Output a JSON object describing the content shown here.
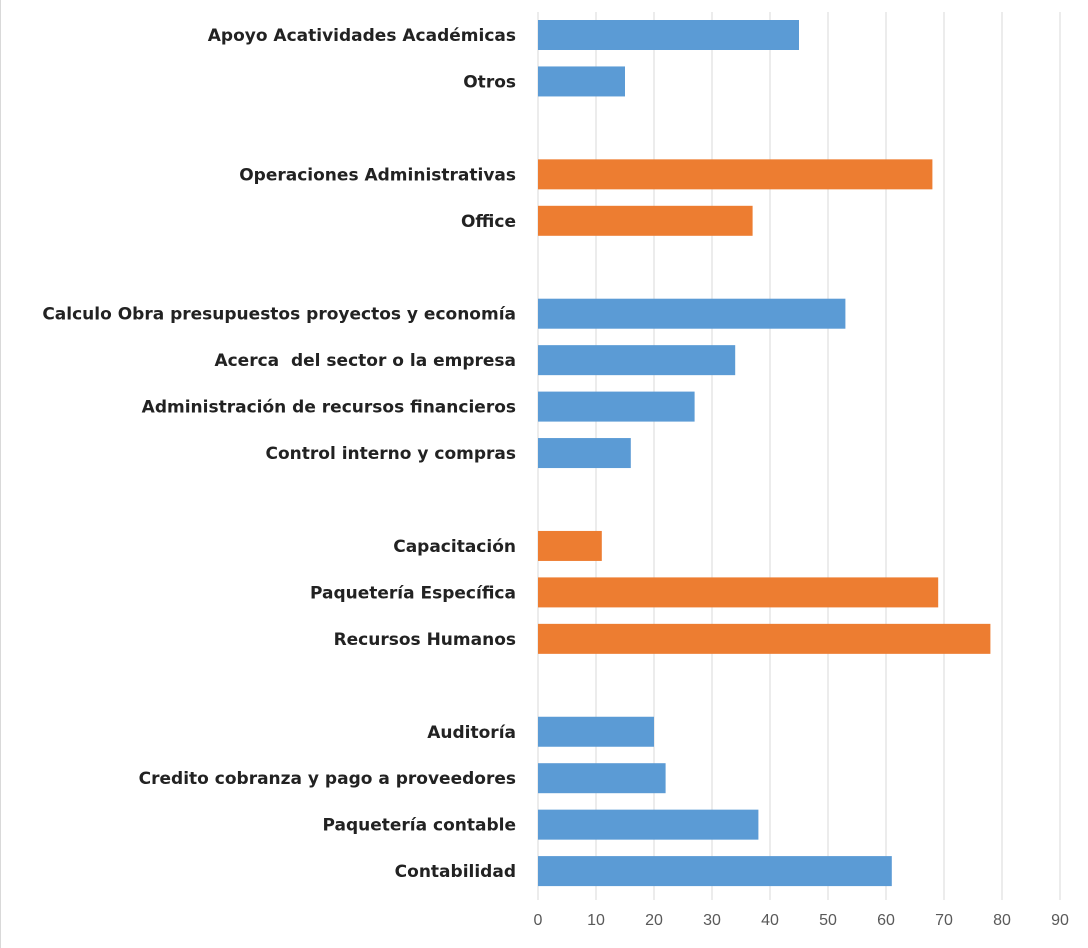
{
  "chart_data": {
    "type": "bar",
    "orientation": "horizontal",
    "grid": true,
    "xlim": [
      0,
      90
    ],
    "x_ticks": [
      "0",
      "10",
      "20",
      "30",
      "40",
      "50",
      "60",
      "70",
      "80",
      "90"
    ],
    "colors": {
      "blue": "#5b9bd5",
      "orange": "#ed7d31"
    },
    "categories": [
      {
        "label": "Apoyo Acatividades Académicas",
        "value": 45,
        "color": "blue"
      },
      {
        "label": "Otros",
        "value": 15,
        "color": "blue"
      },
      {
        "label": "",
        "value": null,
        "color": null
      },
      {
        "label": "Operaciones Administrativas",
        "value": 68,
        "color": "orange"
      },
      {
        "label": "Office",
        "value": 37,
        "color": "orange"
      },
      {
        "label": "",
        "value": null,
        "color": null
      },
      {
        "label": "Calculo Obra presupuestos proyectos y economía",
        "value": 53,
        "color": "blue"
      },
      {
        "label": "Acerca  del sector o la empresa",
        "value": 34,
        "color": "blue"
      },
      {
        "label": "Administración de recursos financieros",
        "value": 27,
        "color": "blue"
      },
      {
        "label": "Control interno y compras",
        "value": 16,
        "color": "blue"
      },
      {
        "label": "",
        "value": null,
        "color": null
      },
      {
        "label": "Capacitación",
        "value": 11,
        "color": "orange"
      },
      {
        "label": "Paquetería Específica",
        "value": 69,
        "color": "orange"
      },
      {
        "label": "Recursos Humanos",
        "value": 78,
        "color": "orange"
      },
      {
        "label": "",
        "value": null,
        "color": null
      },
      {
        "label": "Auditoría",
        "value": 20,
        "color": "blue"
      },
      {
        "label": "Credito cobranza y pago a proveedores",
        "value": 22,
        "color": "blue"
      },
      {
        "label": "Paquetería contable",
        "value": 38,
        "color": "blue"
      },
      {
        "label": "Contabilidad",
        "value": 61,
        "color": "blue"
      }
    ]
  }
}
